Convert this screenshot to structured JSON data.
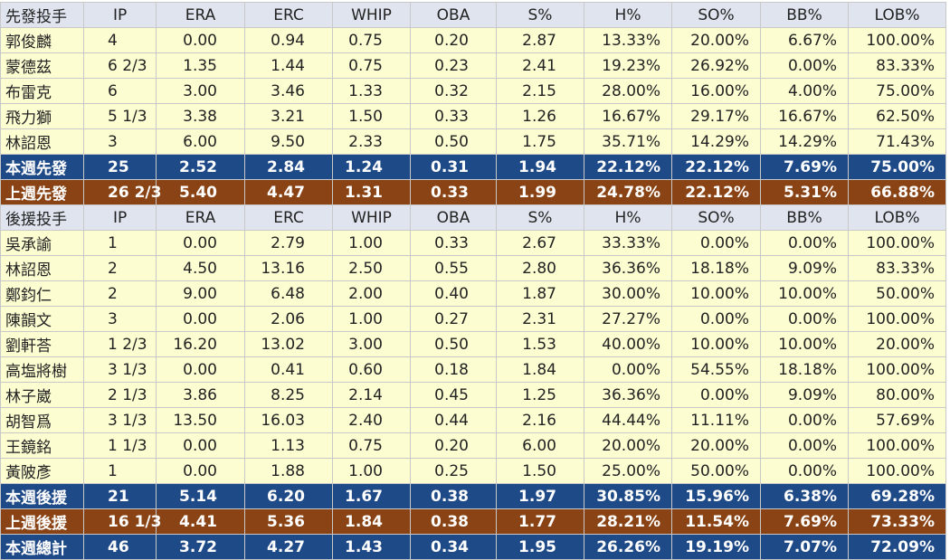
{
  "starters": {
    "header": [
      "先發投手",
      "IP",
      "ERA",
      "ERC",
      "WHIP",
      "OBA",
      "S%",
      "H%",
      "SO%",
      "BB%",
      "LOB%"
    ],
    "rows": [
      [
        "郭俊麟",
        "4",
        "0.00",
        "0.94",
        "0.75",
        "0.20",
        "2.87",
        "13.33%",
        "20.00%",
        "6.67%",
        "100.00%"
      ],
      [
        "蒙德茲",
        "6 2/3",
        "1.35",
        "1.44",
        "0.75",
        "0.23",
        "2.41",
        "19.23%",
        "26.92%",
        "0.00%",
        "83.33%"
      ],
      [
        "布雷克",
        "6",
        "3.00",
        "3.46",
        "1.33",
        "0.32",
        "2.15",
        "28.00%",
        "16.00%",
        "4.00%",
        "75.00%"
      ],
      [
        "飛力獅",
        "5 1/3",
        "3.38",
        "3.21",
        "1.50",
        "0.33",
        "1.26",
        "16.67%",
        "29.17%",
        "16.67%",
        "62.50%"
      ],
      [
        "林詔恩",
        "3",
        "6.00",
        "9.50",
        "2.33",
        "0.50",
        "1.75",
        "35.71%",
        "14.29%",
        "14.29%",
        "71.43%"
      ]
    ],
    "this_week": [
      "本週先發",
      "25",
      "2.52",
      "2.84",
      "1.24",
      "0.31",
      "1.94",
      "22.12%",
      "22.12%",
      "7.69%",
      "75.00%"
    ],
    "last_week": [
      "上週先發",
      "26 2/3",
      "5.40",
      "4.47",
      "1.31",
      "0.33",
      "1.99",
      "24.78%",
      "22.12%",
      "5.31%",
      "66.88%"
    ]
  },
  "relievers": {
    "header": [
      "後援投手",
      "IP",
      "ERA",
      "ERC",
      "WHIP",
      "OBA",
      "S%",
      "H%",
      "SO%",
      "BB%",
      "LOB%"
    ],
    "rows": [
      [
        "吳承諭",
        "1",
        "0.00",
        "2.79",
        "1.00",
        "0.33",
        "2.67",
        "33.33%",
        "0.00%",
        "0.00%",
        "100.00%"
      ],
      [
        "林詔恩",
        "2",
        "4.50",
        "13.16",
        "2.50",
        "0.55",
        "2.80",
        "36.36%",
        "18.18%",
        "9.09%",
        "83.33%"
      ],
      [
        "鄭鈞仁",
        "2",
        "9.00",
        "6.48",
        "2.00",
        "0.40",
        "1.87",
        "30.00%",
        "10.00%",
        "10.00%",
        "50.00%"
      ],
      [
        "陳韻文",
        "3",
        "0.00",
        "2.06",
        "1.00",
        "0.27",
        "2.31",
        "27.27%",
        "0.00%",
        "0.00%",
        "100.00%"
      ],
      [
        "劉軒荅",
        "1 2/3",
        "16.20",
        "13.02",
        "3.00",
        "0.50",
        "1.53",
        "40.00%",
        "10.00%",
        "10.00%",
        "20.00%"
      ],
      [
        "高塩將樹",
        "3 1/3",
        "0.00",
        "0.41",
        "0.60",
        "0.18",
        "1.84",
        "0.00%",
        "54.55%",
        "18.18%",
        "100.00%"
      ],
      [
        "林子崴",
        "2 1/3",
        "3.86",
        "8.25",
        "2.14",
        "0.45",
        "1.25",
        "36.36%",
        "0.00%",
        "9.09%",
        "80.00%"
      ],
      [
        "胡智爲",
        "3 1/3",
        "13.50",
        "16.03",
        "2.40",
        "0.44",
        "2.16",
        "44.44%",
        "11.11%",
        "0.00%",
        "57.69%"
      ],
      [
        "王鏡銘",
        "1 1/3",
        "0.00",
        "1.13",
        "0.75",
        "0.20",
        "6.00",
        "20.00%",
        "20.00%",
        "0.00%",
        "100.00%"
      ],
      [
        "黃陂彥",
        "1",
        "0.00",
        "1.88",
        "1.00",
        "0.25",
        "1.50",
        "25.00%",
        "50.00%",
        "0.00%",
        "100.00%"
      ]
    ],
    "this_week": [
      "本週後援",
      "21",
      "5.14",
      "6.20",
      "1.67",
      "0.38",
      "1.97",
      "30.85%",
      "15.96%",
      "6.38%",
      "69.28%"
    ],
    "last_week": [
      "上週後援",
      "16 1/3",
      "4.41",
      "5.36",
      "1.84",
      "0.38",
      "1.77",
      "28.21%",
      "11.54%",
      "7.69%",
      "73.33%"
    ]
  },
  "total": [
    "本週總計",
    "46",
    "3.72",
    "4.27",
    "1.43",
    "0.34",
    "1.95",
    "26.26%",
    "19.19%",
    "7.07%",
    "72.09%"
  ]
}
